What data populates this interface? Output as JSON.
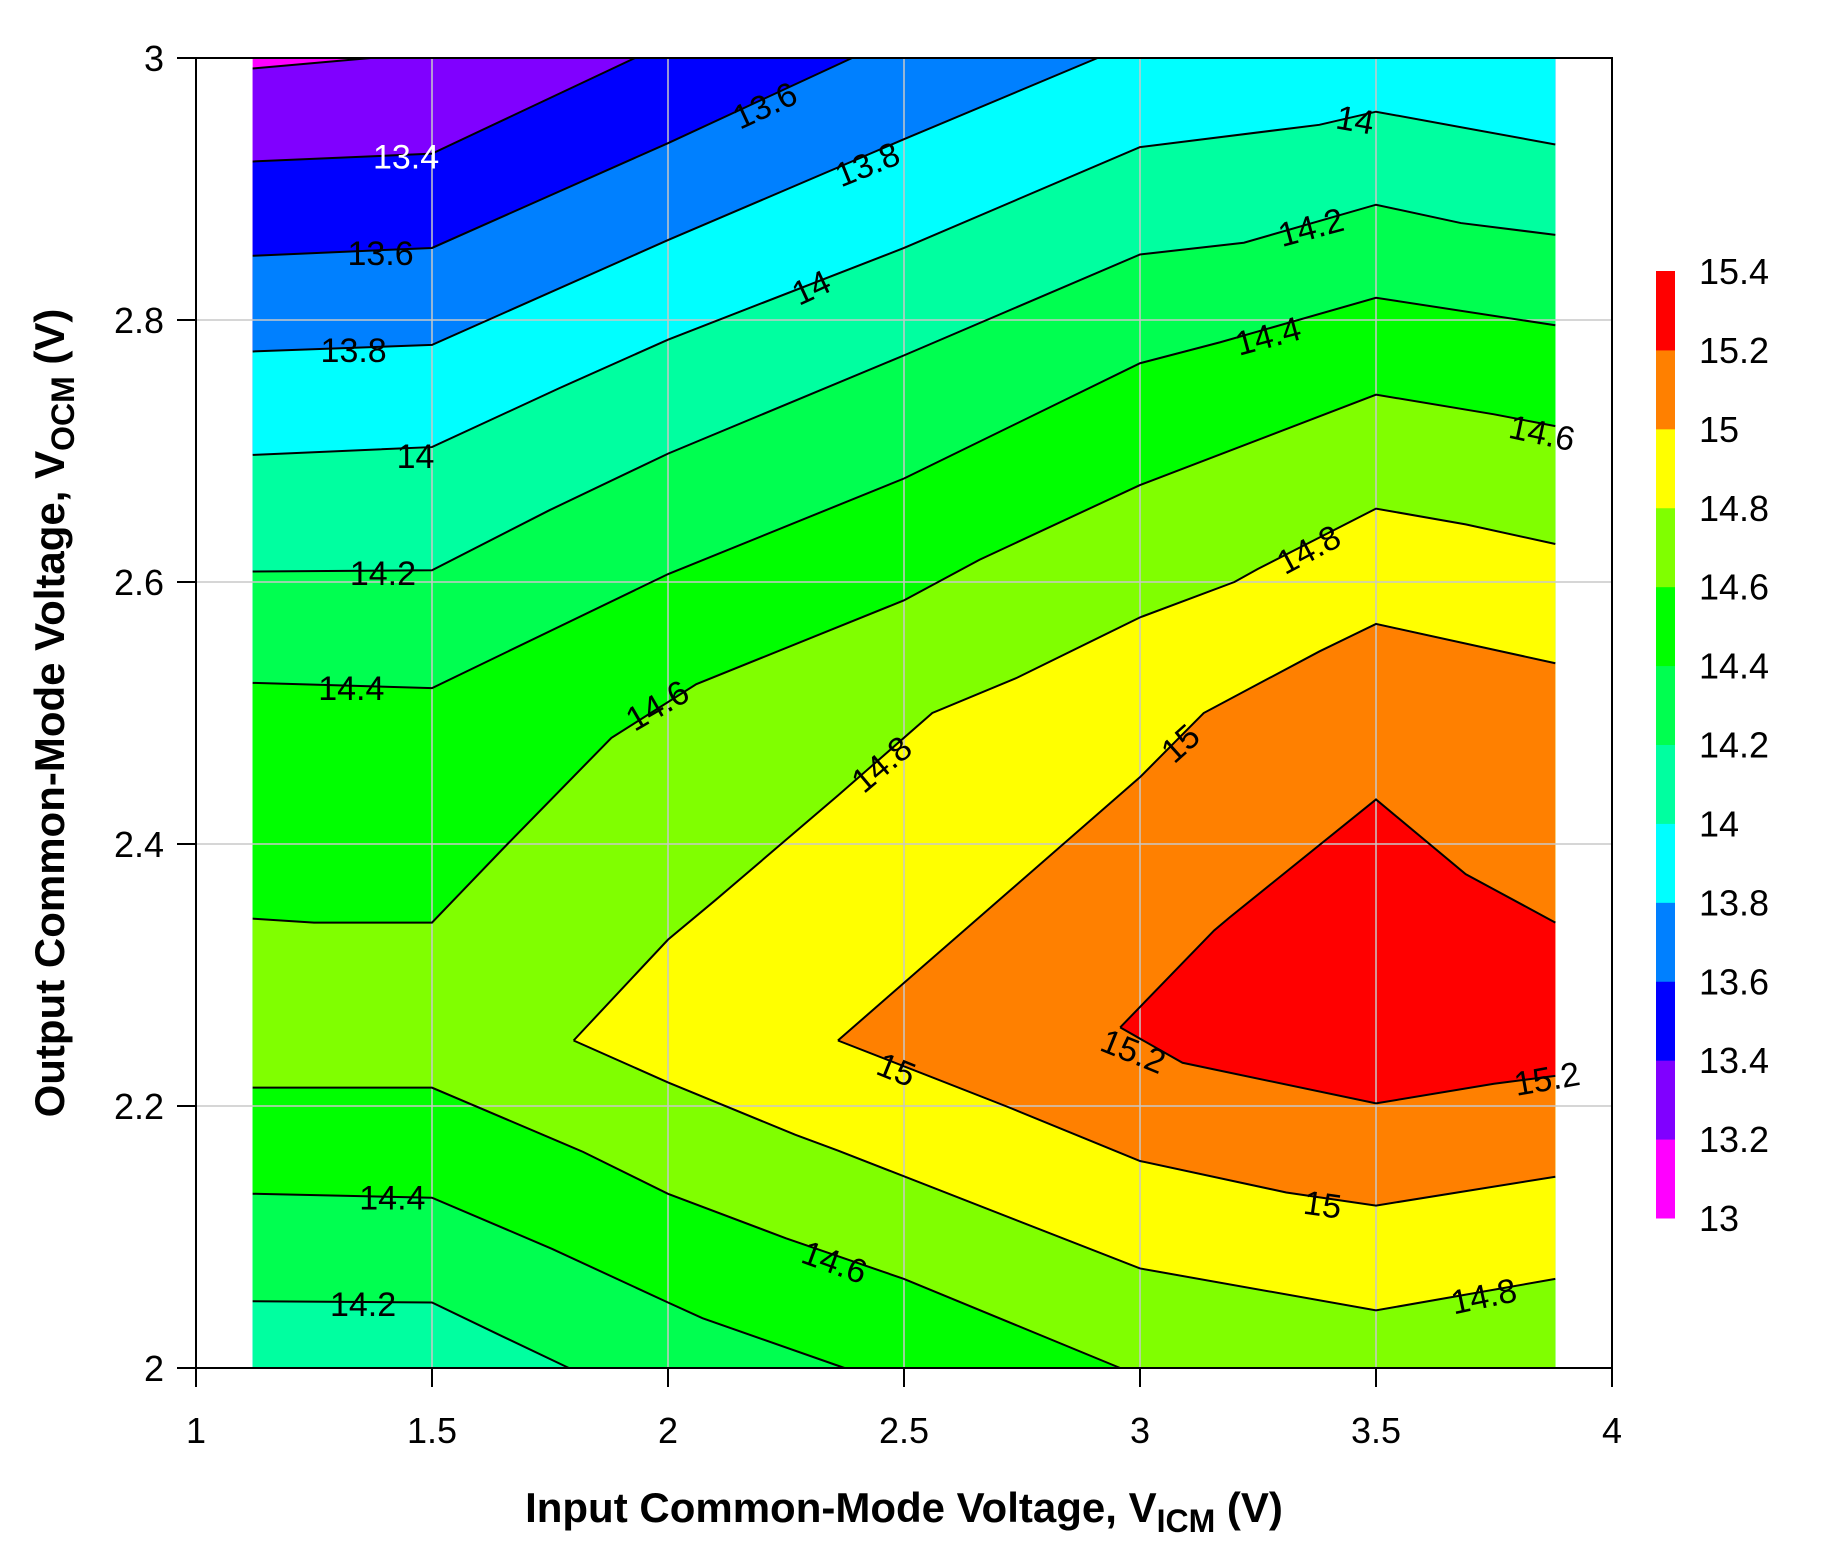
{
  "chart_data": {
    "type": "contour",
    "title": "",
    "xlabel": {
      "main": "Input Common-Mode Voltage, V",
      "sub": "ICM",
      "unit": " (V)"
    },
    "ylabel": {
      "main": "Output Common-Mode Voltage, V",
      "sub": "OCM",
      "unit": " (V)"
    },
    "xlim": [
      1,
      4
    ],
    "ylim": [
      2,
      3
    ],
    "x_ticks": [
      1,
      1.5,
      2,
      2.5,
      3,
      3.5,
      4
    ],
    "x_tick_labels": [
      "1",
      "1.5",
      "2",
      "2.5",
      "3",
      "3.5",
      "4"
    ],
    "y_ticks": [
      2,
      2.2,
      2.4,
      2.6,
      2.8,
      3
    ],
    "y_tick_labels": [
      "2",
      "2.2",
      "2.4",
      "2.6",
      "2.8",
      "3"
    ],
    "grid": true,
    "data_extent": {
      "x": [
        1.12,
        3.88
      ],
      "y": [
        2,
        3
      ]
    },
    "colorbar": {
      "position": "right",
      "levels": [
        13,
        13.2,
        13.4,
        13.6,
        13.8,
        14,
        14.2,
        14.4,
        14.6,
        14.8,
        15,
        15.2,
        15.4
      ],
      "labels": [
        "13",
        "13.2",
        "13.4",
        "13.6",
        "13.8",
        "14",
        "14.2",
        "14.4",
        "14.6",
        "14.8",
        "15",
        "15.2",
        "15.4"
      ],
      "colors": [
        "#FF00FF",
        "#8000FF",
        "#0000FF",
        "#0080FF",
        "#00FFFF",
        "#00FFA0",
        "#00FF50",
        "#00FF00",
        "#80FF00",
        "#FFFF00",
        "#FF8000",
        "#FF0000"
      ]
    },
    "regions_at_or_above_level": [
      {
        "level": 13.2,
        "polygon": [
          [
            1.12,
            2.992
          ],
          [
            1.37,
            3.0
          ],
          [
            3.88,
            3.0
          ],
          [
            3.88,
            2.0
          ],
          [
            1.12,
            2.0
          ]
        ]
      },
      {
        "level": 13.4,
        "polygon": [
          [
            1.12,
            2.921
          ],
          [
            1.5,
            2.927
          ],
          [
            1.93,
            3.0
          ],
          [
            3.88,
            3.0
          ],
          [
            3.88,
            2.0
          ],
          [
            1.12,
            2.0
          ]
        ]
      },
      {
        "level": 13.6,
        "polygon": [
          [
            1.12,
            2.849
          ],
          [
            1.5,
            2.855
          ],
          [
            2.0,
            2.935
          ],
          [
            2.39,
            3.0
          ],
          [
            3.88,
            3.0
          ],
          [
            3.88,
            2.0
          ],
          [
            1.12,
            2.0
          ]
        ]
      },
      {
        "level": 13.8,
        "polygon": [
          [
            1.12,
            2.776
          ],
          [
            1.5,
            2.781
          ],
          [
            2.0,
            2.861
          ],
          [
            2.5,
            2.938
          ],
          [
            2.91,
            3.0
          ],
          [
            3.88,
            3.0
          ],
          [
            3.88,
            2.0
          ],
          [
            1.12,
            2.0
          ]
        ]
      },
      {
        "level": 14.0,
        "polygon": [
          [
            1.12,
            2.697
          ],
          [
            1.5,
            2.703
          ],
          [
            1.77,
            2.748
          ],
          [
            2.0,
            2.785
          ],
          [
            2.5,
            2.855
          ],
          [
            3.0,
            2.932
          ],
          [
            3.38,
            2.949
          ],
          [
            3.5,
            2.959
          ],
          [
            3.88,
            2.934
          ],
          [
            3.88,
            2.0
          ],
          [
            1.12,
            2.0
          ]
        ]
      },
      {
        "level": 14.2,
        "polygon": [
          [
            1.12,
            2.608
          ],
          [
            1.5,
            2.609
          ],
          [
            1.75,
            2.655
          ],
          [
            2.0,
            2.698
          ],
          [
            2.5,
            2.773
          ],
          [
            3.0,
            2.85
          ],
          [
            3.22,
            2.859
          ],
          [
            3.5,
            2.888
          ],
          [
            3.68,
            2.874
          ],
          [
            3.88,
            2.865
          ],
          [
            3.88,
            2.0
          ],
          [
            1.79,
            2.0
          ],
          [
            1.65,
            2.024
          ],
          [
            1.5,
            2.05
          ],
          [
            1.12,
            2.051
          ]
        ]
      },
      {
        "level": 14.4,
        "polygon": [
          [
            1.12,
            2.523
          ],
          [
            1.5,
            2.519
          ],
          [
            2.0,
            2.606
          ],
          [
            2.5,
            2.679
          ],
          [
            3.0,
            2.767
          ],
          [
            3.17,
            2.783
          ],
          [
            3.5,
            2.817
          ],
          [
            3.88,
            2.796
          ],
          [
            3.88,
            2.0
          ],
          [
            2.374,
            2.0
          ],
          [
            2.073,
            2.038
          ],
          [
            2.0,
            2.05
          ],
          [
            1.754,
            2.091
          ],
          [
            1.5,
            2.13
          ],
          [
            1.12,
            2.133
          ]
        ]
      },
      {
        "level": 14.6,
        "polygon": [
          [
            1.12,
            2.343
          ],
          [
            1.25,
            2.34
          ],
          [
            1.5,
            2.34
          ],
          [
            1.66,
            2.4
          ],
          [
            1.88,
            2.481
          ],
          [
            2.06,
            2.522
          ],
          [
            2.5,
            2.586
          ],
          [
            2.66,
            2.617
          ],
          [
            3.0,
            2.674
          ],
          [
            3.5,
            2.743
          ],
          [
            3.75,
            2.728
          ],
          [
            3.88,
            2.719
          ],
          [
            3.88,
            2.0
          ],
          [
            2.958,
            2.0
          ],
          [
            2.5,
            2.068
          ],
          [
            2.25,
            2.099
          ],
          [
            2.0,
            2.133
          ],
          [
            1.82,
            2.165
          ],
          [
            1.5,
            2.214
          ],
          [
            1.12,
            2.214
          ]
        ]
      },
      {
        "level": 14.8,
        "polygon": [
          [
            1.8,
            2.25
          ],
          [
            2.0,
            2.327
          ],
          [
            2.1,
            2.357
          ],
          [
            2.36,
            2.437
          ],
          [
            2.56,
            2.5
          ],
          [
            2.74,
            2.527
          ],
          [
            3.0,
            2.573
          ],
          [
            3.2,
            2.6
          ],
          [
            3.25,
            2.61
          ],
          [
            3.5,
            2.656
          ],
          [
            3.69,
            2.644
          ],
          [
            3.88,
            2.629
          ],
          [
            3.88,
            2.068
          ],
          [
            3.5,
            2.044
          ],
          [
            3.0,
            2.076
          ],
          [
            2.36,
            2.166
          ],
          [
            2.27,
            2.178
          ],
          [
            2.0,
            2.218
          ],
          [
            1.8,
            2.25
          ]
        ]
      },
      {
        "level": 15.0,
        "polygon": [
          [
            2.36,
            2.25
          ],
          [
            3.0,
            2.451
          ],
          [
            3.135,
            2.5
          ],
          [
            3.38,
            2.547
          ],
          [
            3.5,
            2.568
          ],
          [
            3.88,
            2.538
          ],
          [
            3.88,
            2.146
          ],
          [
            3.5,
            2.124
          ],
          [
            3.31,
            2.134
          ],
          [
            3.0,
            2.158
          ],
          [
            2.715,
            2.2
          ],
          [
            2.36,
            2.25
          ]
        ]
      },
      {
        "level": 15.2,
        "polygon": [
          [
            2.958,
            2.26
          ],
          [
            3.157,
            2.334
          ],
          [
            3.19,
            2.344
          ],
          [
            3.5,
            2.434
          ],
          [
            3.69,
            2.377
          ],
          [
            3.88,
            2.34
          ],
          [
            3.88,
            2.223
          ],
          [
            3.75,
            2.217
          ],
          [
            3.5,
            2.202
          ],
          [
            3.09,
            2.233
          ],
          [
            2.958,
            2.26
          ]
        ]
      }
    ],
    "contour_labels": [
      {
        "text": "13.4",
        "x": 1.445,
        "y": 2.925,
        "white": true
      },
      {
        "text": "13.6",
        "x": 2.205,
        "y": 2.964
      },
      {
        "text": "13.8",
        "x": 2.422,
        "y": 2.919
      },
      {
        "text": "14",
        "x": 3.456,
        "y": 2.953
      },
      {
        "text": "13.6",
        "x": 1.391,
        "y": 2.851
      },
      {
        "text": "14.2",
        "x": 3.362,
        "y": 2.871
      },
      {
        "text": "14",
        "x": 2.303,
        "y": 2.825
      },
      {
        "text": "13.8",
        "x": 1.334,
        "y": 2.777
      },
      {
        "text": "14.4",
        "x": 3.271,
        "y": 2.788
      },
      {
        "text": "14.6",
        "x": 3.852,
        "y": 2.714
      },
      {
        "text": "14",
        "x": 1.465,
        "y": 2.696
      },
      {
        "text": "14.8",
        "x": 3.357,
        "y": 2.625
      },
      {
        "text": "14.2",
        "x": 1.396,
        "y": 2.607
      },
      {
        "text": "14.4",
        "x": 1.329,
        "y": 2.519
      },
      {
        "text": "14.6",
        "x": 1.977,
        "y": 2.506
      },
      {
        "text": "15",
        "x": 3.085,
        "y": 2.477
      },
      {
        "text": "14.8",
        "x": 2.452,
        "y": 2.461
      },
      {
        "text": "15",
        "x": 2.484,
        "y": 2.228
      },
      {
        "text": "15.2",
        "x": 2.986,
        "y": 2.242
      },
      {
        "text": "15.2",
        "x": 3.862,
        "y": 2.221
      },
      {
        "text": "14.4",
        "x": 1.416,
        "y": 2.13
      },
      {
        "text": "15",
        "x": 3.387,
        "y": 2.125
      },
      {
        "text": "14.6",
        "x": 2.353,
        "y": 2.081
      },
      {
        "text": "14.2",
        "x": 1.354,
        "y": 2.049
      },
      {
        "text": "14.8",
        "x": 3.728,
        "y": 2.055
      }
    ]
  }
}
